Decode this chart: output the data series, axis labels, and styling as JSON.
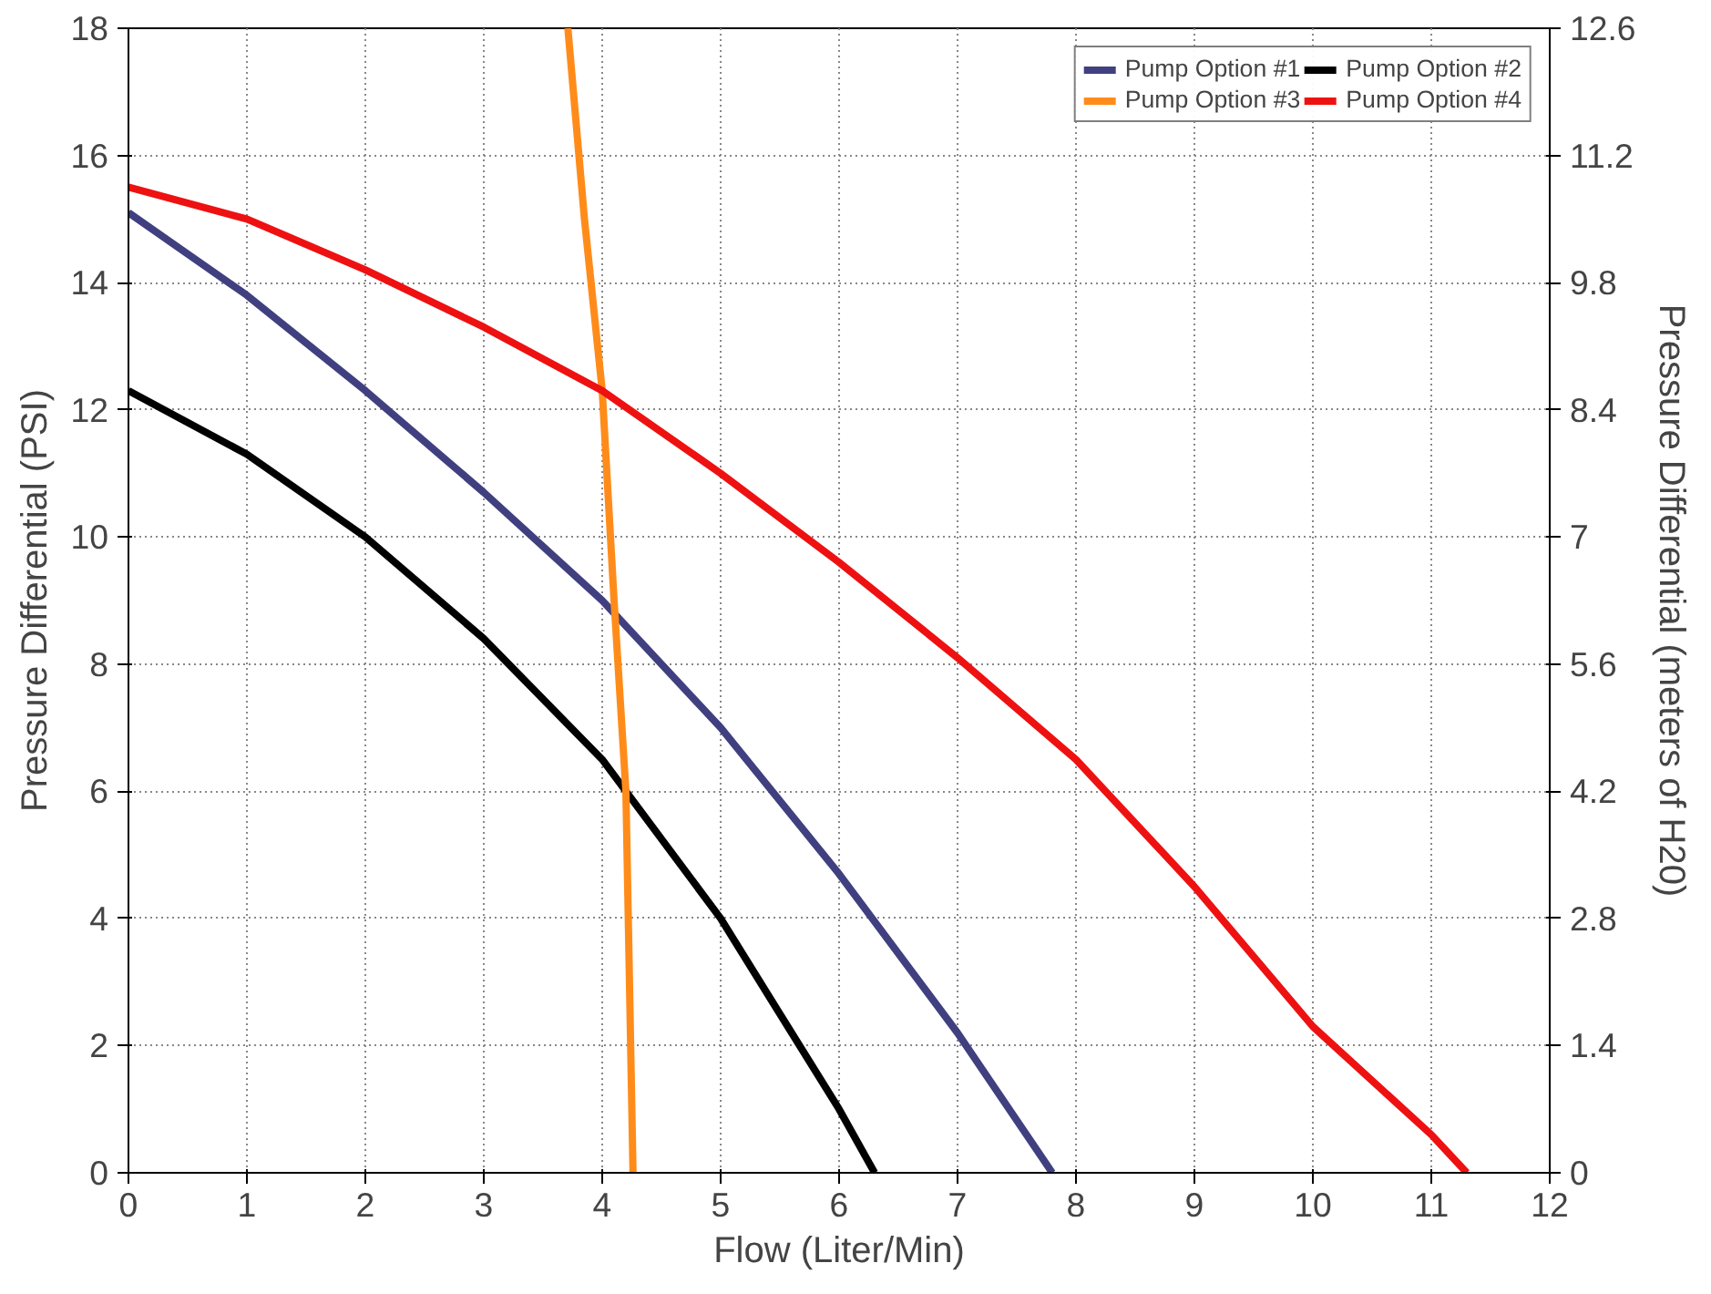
{
  "chart_data": {
    "type": "line",
    "xlabel": "Flow (Liter/Min)",
    "ylabel": "Pressure Differential (PSI)",
    "y2label": "Pressure Differential (meters of H20)",
    "xlim": [
      0,
      12
    ],
    "xticks": [
      0,
      1,
      2,
      3,
      4,
      5,
      6,
      7,
      8,
      9,
      10,
      11,
      12
    ],
    "ylim": [
      0,
      18
    ],
    "yticks": [
      0,
      2,
      4,
      6,
      8,
      10,
      12,
      14,
      16,
      18
    ],
    "y2lim": [
      0,
      12.6
    ],
    "y2ticks": [
      0,
      1.4,
      2.8,
      4.2,
      5.6,
      7,
      8.4,
      9.8,
      11.2,
      12.6
    ],
    "grid": true,
    "legend": "top right",
    "line_style": "solid",
    "marker": "none",
    "series": [
      {
        "name": "Pump Option #1",
        "color": "#404080",
        "x": [
          0,
          1,
          2,
          3,
          4,
          5,
          6,
          7,
          7.8
        ],
        "values": [
          15.1,
          13.8,
          12.3,
          10.7,
          9.0,
          7.0,
          4.7,
          2.2,
          0
        ]
      },
      {
        "name": "Pump Option #2",
        "color": "#000000",
        "x": [
          0,
          1,
          2,
          3,
          4,
          5,
          5.5,
          6,
          6.3
        ],
        "values": [
          12.3,
          11.3,
          10.0,
          8.4,
          6.5,
          4.0,
          2.5,
          1.0,
          0
        ]
      },
      {
        "name": "Pump Option #3",
        "color": "#ff8c1a",
        "x": [
          3.71,
          3.85,
          4.0,
          4.1,
          4.2,
          4.26
        ],
        "values": [
          18,
          15,
          12.3,
          9,
          6,
          0
        ]
      },
      {
        "name": "Pump Option #4",
        "color": "#ee1111",
        "x": [
          0,
          1,
          2,
          3,
          4,
          5,
          6,
          7,
          8,
          9,
          10,
          11,
          11.3
        ],
        "values": [
          15.5,
          15.0,
          14.2,
          13.3,
          12.3,
          11.0,
          9.6,
          8.1,
          6.5,
          4.5,
          2.3,
          0.6,
          0
        ]
      }
    ]
  }
}
